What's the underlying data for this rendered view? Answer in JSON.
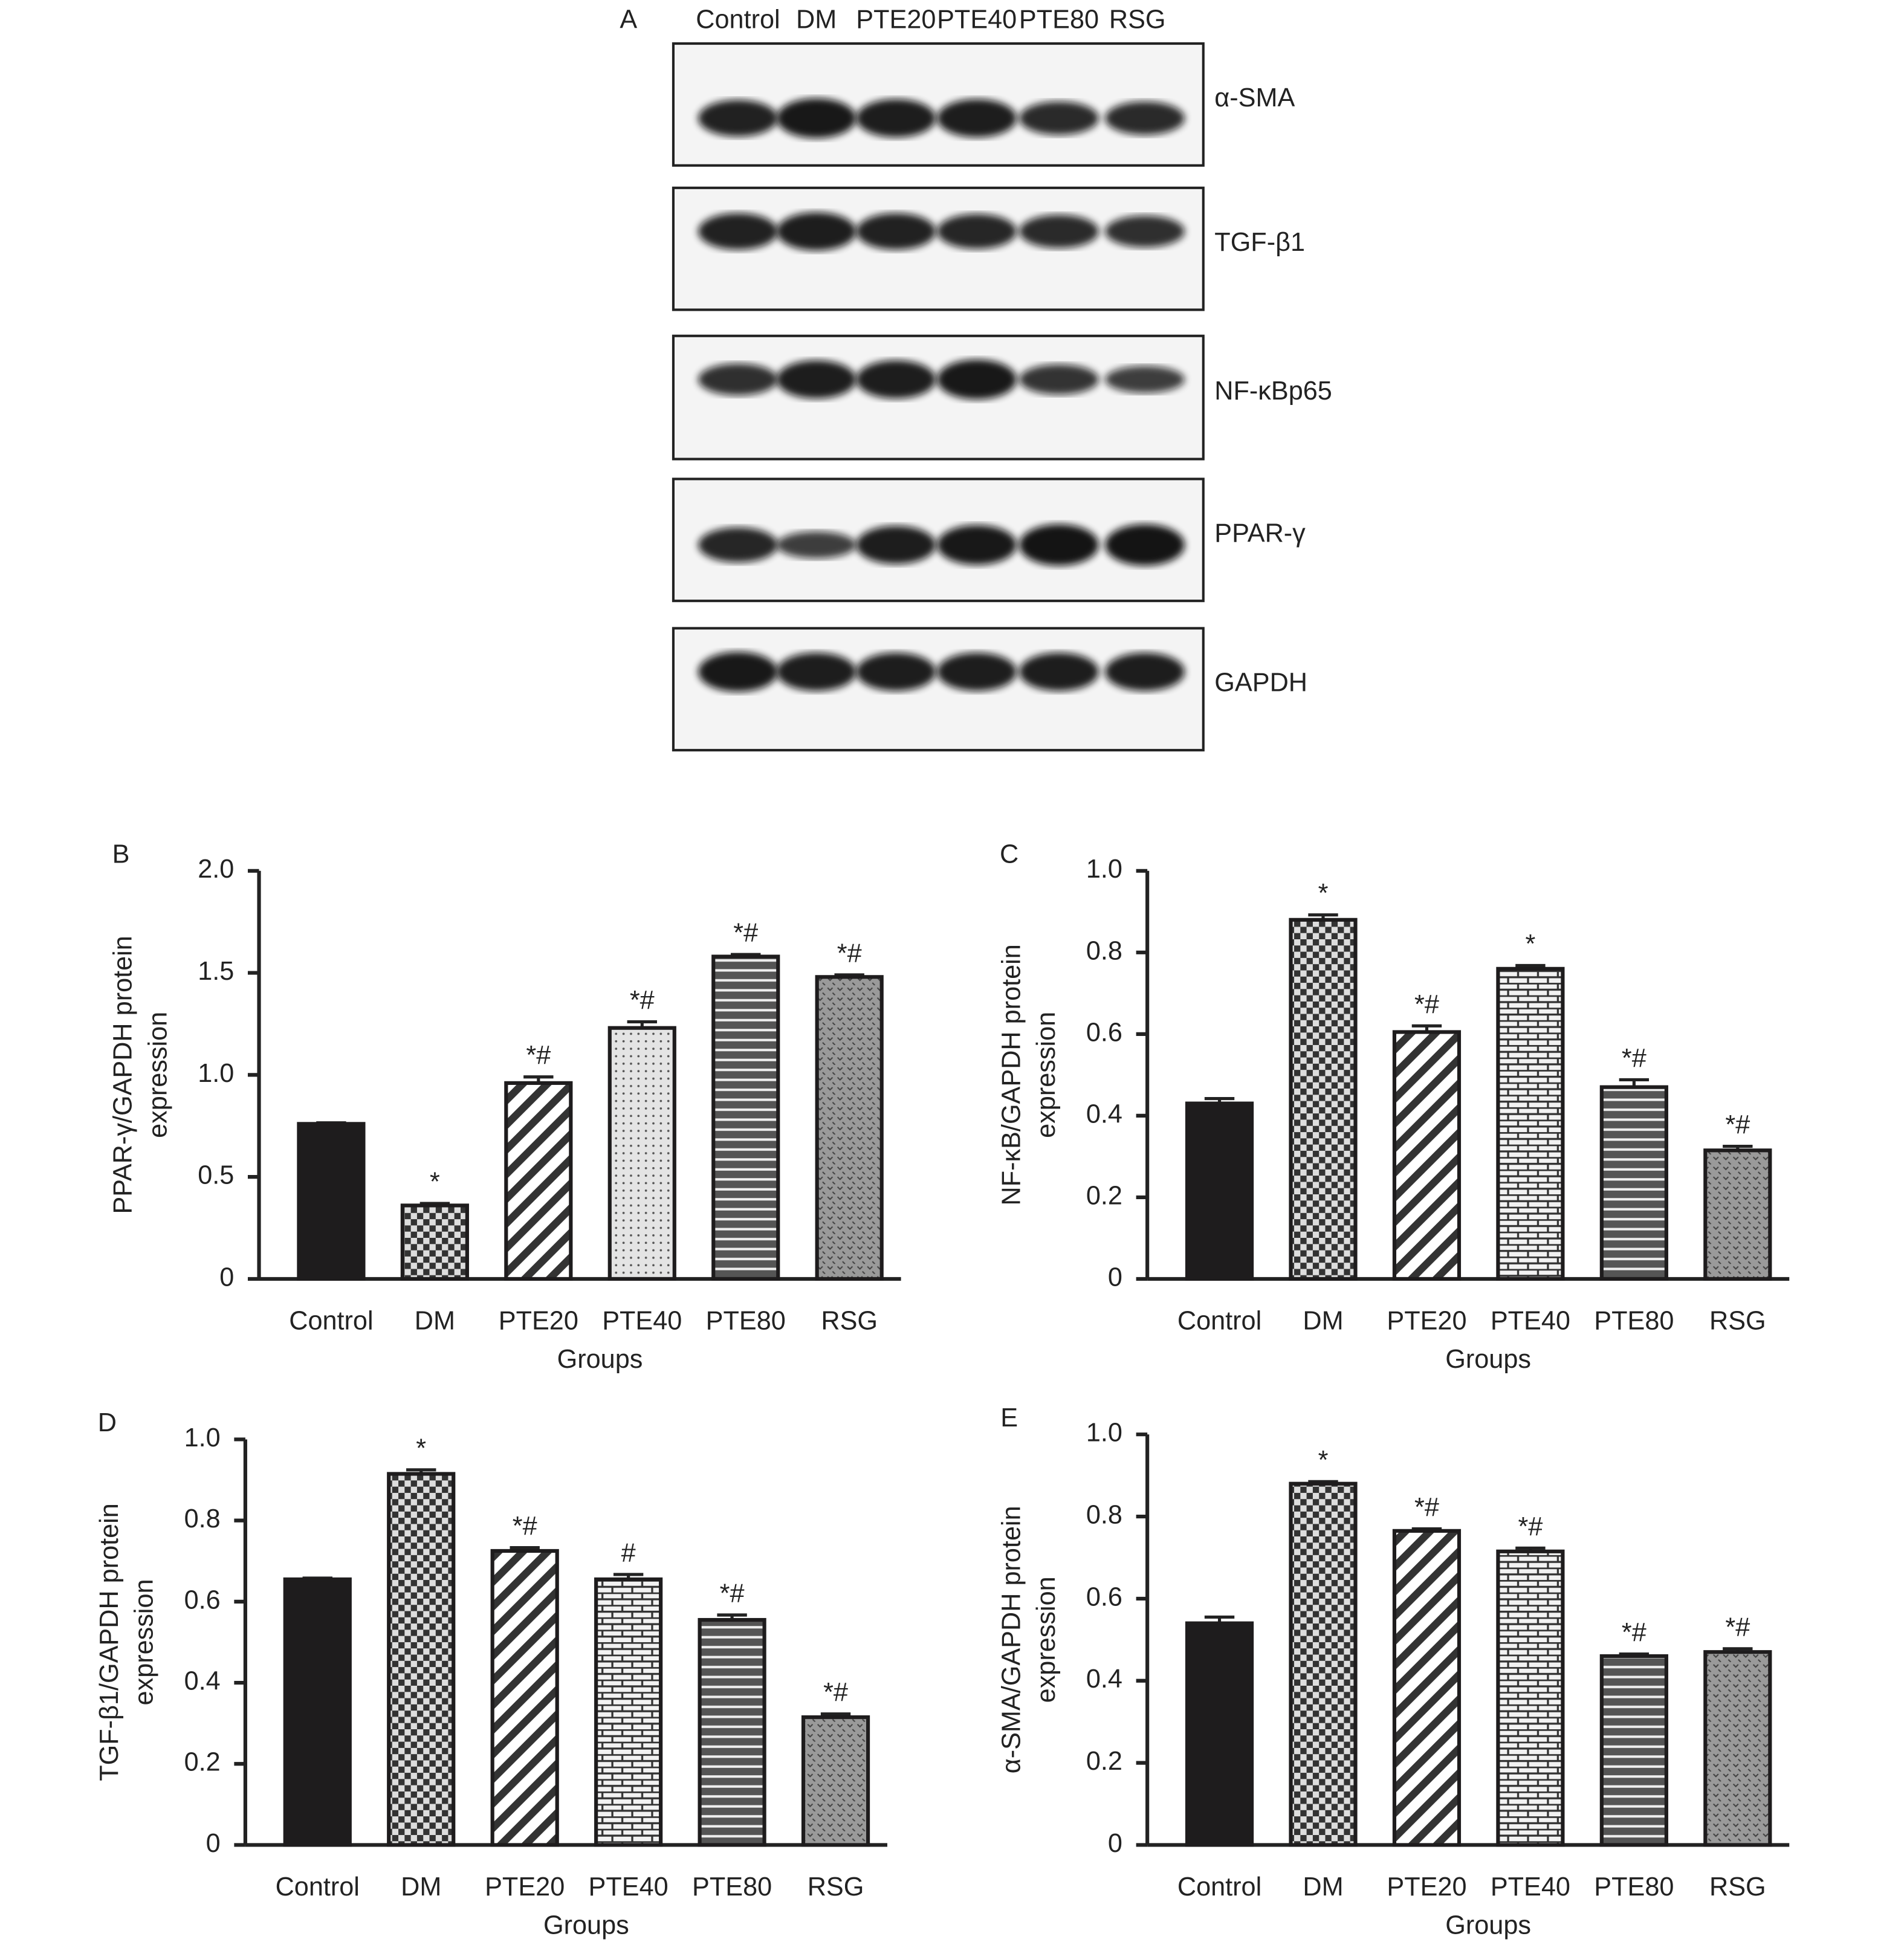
{
  "blot": {
    "panel": "A",
    "lanes": [
      "Control",
      "DM",
      "PTE20",
      "PTE40",
      "PTE80",
      "RSG"
    ],
    "proteins": [
      "α-SMA",
      "TGF-β1",
      "NF-κBp65",
      "PPAR-γ",
      "GAPDH"
    ]
  },
  "chart_data": [
    {
      "type": "bar",
      "panel": "B",
      "ylabel": [
        "PPAR-γ/GAPDH protein",
        "expression"
      ],
      "xlabel": "Groups",
      "categories": [
        "Control",
        "DM",
        "PTE20",
        "PTE40",
        "PTE80",
        "RSG"
      ],
      "values": [
        0.76,
        0.36,
        0.96,
        1.23,
        1.58,
        1.48
      ],
      "errors": [
        0.005,
        0.01,
        0.03,
        0.03,
        0.01,
        0.01
      ],
      "annotations": [
        null,
        "*",
        "*#",
        "*#",
        "*#",
        "*#"
      ],
      "ylim": [
        0,
        2
      ],
      "yticks": [
        0,
        0.5,
        {
          "value": 1,
          "label": "1.0"
        },
        1.5,
        {
          "value": 2,
          "label": "2.0"
        }
      ],
      "color": "#1e1c1d"
    },
    {
      "type": "bar",
      "panel": "C",
      "ylabel": [
        "NF-κB/GAPDH protein",
        "expression"
      ],
      "xlabel": "Groups",
      "categories": [
        "Control",
        "DM",
        "PTE20",
        "PTE40",
        "PTE80",
        "RSG"
      ],
      "values": [
        0.43,
        0.88,
        0.605,
        0.76,
        0.47,
        0.315
      ],
      "errors": [
        0.012,
        0.012,
        0.015,
        0.008,
        0.018,
        0.01
      ],
      "annotations": [
        null,
        "*",
        "*#",
        "*",
        "*#",
        "*#"
      ],
      "ylim": [
        0,
        1
      ],
      "yticks": [
        0,
        0.2,
        0.4,
        0.6,
        0.8,
        {
          "value": 1,
          "label": "1.0"
        }
      ],
      "color": "#1e1c1d"
    },
    {
      "type": "bar",
      "panel": "D",
      "ylabel": [
        "TGF-β1/GAPDH protein",
        "expression"
      ],
      "xlabel": "Groups",
      "categories": [
        "Control",
        "DM",
        "PTE20",
        "PTE40",
        "PTE80",
        "RSG"
      ],
      "values": [
        0.655,
        0.915,
        0.725,
        0.655,
        0.555,
        0.315
      ],
      "errors": [
        0.003,
        0.01,
        0.008,
        0.012,
        0.012,
        0.008
      ],
      "annotations": [
        null,
        "*",
        "*#",
        "#",
        "*#",
        "*#"
      ],
      "ylim": [
        0,
        1
      ],
      "yticks": [
        0,
        0.2,
        0.4,
        0.6,
        0.8,
        {
          "value": 1,
          "label": "1.0"
        }
      ],
      "color": "#1e1c1d"
    },
    {
      "type": "bar",
      "panel": "E",
      "ylabel": [
        "α-SMA/GAPDH protein",
        "expression"
      ],
      "xlabel": "Groups",
      "categories": [
        "Control",
        "DM",
        "PTE20",
        "PTE40",
        "PTE80",
        "RSG"
      ],
      "values": [
        0.54,
        0.88,
        0.765,
        0.715,
        0.46,
        0.47
      ],
      "errors": [
        0.015,
        0.005,
        0.005,
        0.008,
        0.005,
        0.008
      ],
      "annotations": [
        null,
        "*",
        "*#",
        "*#",
        "*#",
        "*#"
      ],
      "ylim": [
        0,
        1
      ],
      "yticks": [
        0,
        0.2,
        0.4,
        0.6,
        0.8,
        {
          "value": 1,
          "label": "1.0"
        }
      ],
      "color": "#1e1c1d"
    }
  ]
}
